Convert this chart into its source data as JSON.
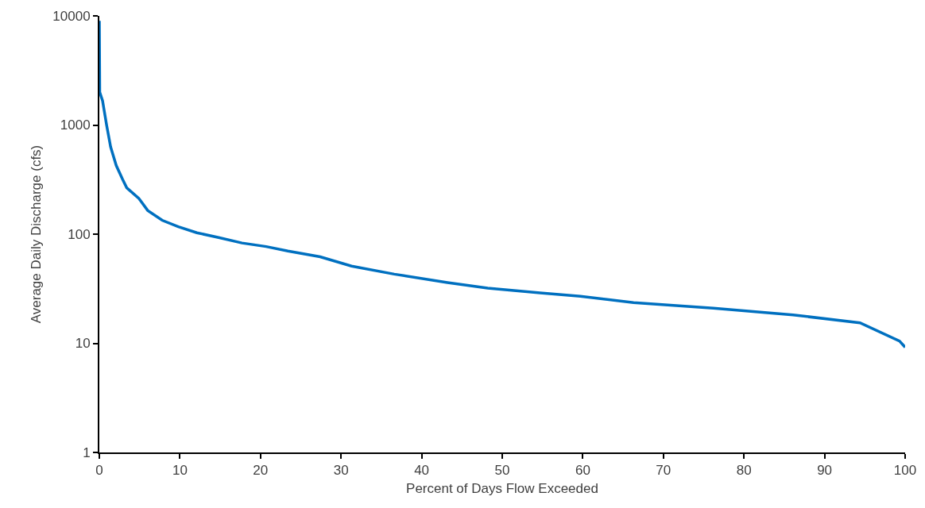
{
  "chart_data": {
    "type": "line",
    "xlabel": "Percent of Days Flow Exceeded",
    "ylabel": "Average Daily Discharge (cfs)",
    "log": "y",
    "grid": false,
    "marker": "none",
    "line_style": "solid",
    "xlim": [
      0,
      100
    ],
    "xticks": [
      0,
      10,
      20,
      30,
      40,
      50,
      60,
      70,
      80,
      90,
      100
    ],
    "ylim": [
      1,
      10000
    ],
    "yticks": [
      1,
      10,
      100,
      1000,
      10000
    ],
    "series": [
      {
        "color": "#0070c0",
        "x": [
          0,
          0.05,
          0.4,
          0.9,
          1.4,
          2.1,
          2.9,
          3.4,
          4.9,
          6.0,
          7.8,
          9.8,
          12.1,
          14.8,
          17.7,
          20.7,
          23.4,
          27.4,
          31.3,
          36.6,
          43.2,
          48.2,
          54.7,
          59.7,
          66.3,
          76.2,
          86.1,
          94.4,
          99.3,
          100
        ],
        "values": [
          9000,
          2000,
          1670,
          1000,
          630,
          425,
          316,
          266,
          213,
          165,
          134,
          117,
          103,
          93,
          83,
          77,
          70,
          62,
          51,
          43,
          36,
          32,
          29,
          27,
          23.6,
          21,
          18.2,
          15.4,
          10.5,
          9.2
        ]
      }
    ]
  }
}
